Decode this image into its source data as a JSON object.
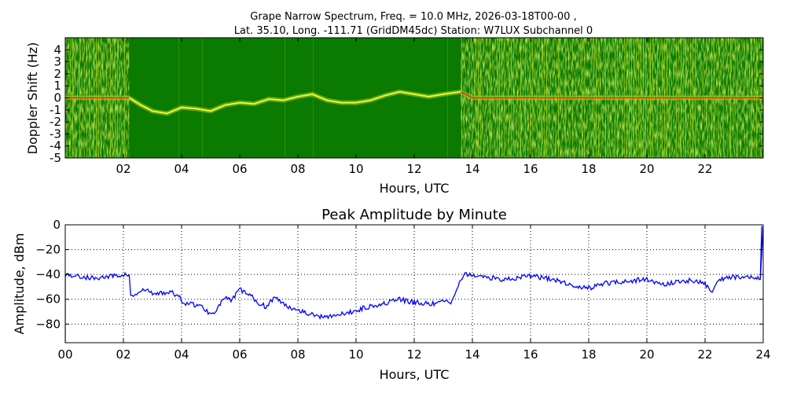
{
  "chart_data": [
    {
      "type": "heatmap",
      "title_line1": "Grape Narrow Spectrum, Freq. = 10.0 MHz, 2026-03-18T00-00 ,",
      "title_line2": "Lat.  35.10, Long. -111.71 (GridDM45dc) Station: W7LUX Subchannel 0",
      "xlabel": "Hours, UTC",
      "ylabel": "Doppler Shift (Hz)",
      "xlim": [
        0,
        24
      ],
      "ylim": [
        -5,
        5
      ],
      "x_tick_labels": [
        "02",
        "04",
        "06",
        "08",
        "10",
        "12",
        "14",
        "16",
        "18",
        "20",
        "22"
      ],
      "y_tick_labels": [
        "4",
        "3",
        "2",
        "1",
        "0",
        "-1",
        "-2",
        "-3",
        "-4",
        "-5"
      ],
      "colors": {
        "background": "#0a7a00",
        "noise": "#9ccf1a",
        "trace": "#f2f23a",
        "peak": "#e02010"
      },
      "doppler_trace": [
        {
          "x": 0.0,
          "y": 0.0
        },
        {
          "x": 1.0,
          "y": 0.0
        },
        {
          "x": 2.2,
          "y": 0.0
        },
        {
          "x": 2.6,
          "y": -0.6
        },
        {
          "x": 3.0,
          "y": -1.1
        },
        {
          "x": 3.5,
          "y": -1.3
        },
        {
          "x": 4.0,
          "y": -0.8
        },
        {
          "x": 4.5,
          "y": -0.9
        },
        {
          "x": 5.0,
          "y": -1.1
        },
        {
          "x": 5.5,
          "y": -0.6
        },
        {
          "x": 6.0,
          "y": -0.4
        },
        {
          "x": 6.5,
          "y": -0.5
        },
        {
          "x": 7.0,
          "y": -0.1
        },
        {
          "x": 7.5,
          "y": -0.2
        },
        {
          "x": 8.0,
          "y": 0.1
        },
        {
          "x": 8.5,
          "y": 0.3
        },
        {
          "x": 9.0,
          "y": -0.2
        },
        {
          "x": 9.5,
          "y": -0.4
        },
        {
          "x": 10.0,
          "y": -0.4
        },
        {
          "x": 10.5,
          "y": -0.2
        },
        {
          "x": 11.0,
          "y": 0.2
        },
        {
          "x": 11.5,
          "y": 0.5
        },
        {
          "x": 12.0,
          "y": 0.3
        },
        {
          "x": 12.5,
          "y": 0.1
        },
        {
          "x": 13.0,
          "y": 0.3
        },
        {
          "x": 13.6,
          "y": 0.5
        },
        {
          "x": 14.0,
          "y": 0.0
        },
        {
          "x": 16.0,
          "y": 0.0
        },
        {
          "x": 18.0,
          "y": 0.0
        },
        {
          "x": 20.0,
          "y": 0.0
        },
        {
          "x": 22.0,
          "y": 0.0
        },
        {
          "x": 24.0,
          "y": 0.0
        }
      ]
    },
    {
      "type": "line",
      "title": "Peak Amplitude by Minute",
      "xlabel": "Hours, UTC",
      "ylabel": "Amplitude, dBm",
      "xlim": [
        0,
        24
      ],
      "ylim": [
        -95,
        0
      ],
      "grid": true,
      "x_tick_labels": [
        "00",
        "02",
        "04",
        "06",
        "08",
        "10",
        "12",
        "14",
        "16",
        "18",
        "20",
        "22",
        "24"
      ],
      "y_ticks": [
        0,
        -20,
        -40,
        -60,
        -80
      ],
      "y_tick_labels": [
        "0",
        "−20",
        "−40",
        "−60",
        "−80"
      ],
      "line_color": "#0000ff",
      "series": [
        {
          "x": [
            0.0,
            0.3,
            0.6,
            1.0,
            1.4,
            1.8,
            2.1,
            2.2,
            2.3,
            2.5,
            2.8,
            3.0,
            3.3,
            3.6,
            3.9,
            4.1,
            4.4,
            4.7,
            5.0,
            5.2,
            5.5,
            5.7,
            6.0,
            6.3,
            6.6,
            6.9,
            7.2,
            7.5,
            7.8,
            8.0,
            8.4,
            8.8,
            9.2,
            9.6,
            10.0,
            10.4,
            10.8,
            11.2,
            11.5,
            11.8,
            12.2,
            12.6,
            13.0,
            13.3,
            13.6,
            13.7,
            14.0,
            14.5,
            15.0,
            15.5,
            16.0,
            16.5,
            17.0,
            17.3,
            17.6,
            18.0,
            18.3,
            18.6,
            19.0,
            19.5,
            20.0,
            20.3,
            20.6,
            21.0,
            21.5,
            22.0,
            22.2,
            22.5,
            23.0,
            23.5,
            23.9,
            24.0
          ],
          "y": [
            -40,
            -41,
            -42,
            -43,
            -42,
            -41,
            -40,
            -40,
            -58,
            -55,
            -52,
            -56,
            -55,
            -54,
            -58,
            -63,
            -64,
            -66,
            -72,
            -68,
            -58,
            -62,
            -52,
            -56,
            -62,
            -66,
            -58,
            -64,
            -67,
            -68,
            -72,
            -74,
            -73,
            -72,
            -69,
            -66,
            -64,
            -62,
            -60,
            -62,
            -63,
            -64,
            -62,
            -62,
            -45,
            -40,
            -41,
            -42,
            -44,
            -43,
            -41,
            -43,
            -45,
            -48,
            -50,
            -51,
            -49,
            -47,
            -46,
            -45,
            -44,
            -47,
            -48,
            -46,
            -45,
            -47,
            -55,
            -44,
            -42,
            -41,
            -44,
            -1
          ]
        }
      ]
    }
  ]
}
